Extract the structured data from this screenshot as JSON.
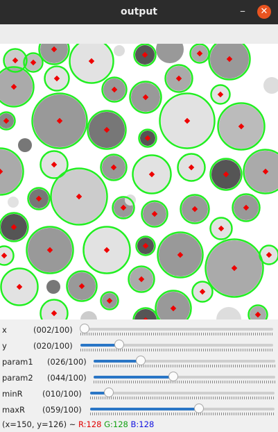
{
  "window": {
    "title": "output",
    "minimize_glyph": "–",
    "close_glyph": "✕"
  },
  "sliders": [
    {
      "label": "x",
      "value_text": "(002/100)",
      "value": 2
    },
    {
      "label": "y",
      "value_text": "(020/100)",
      "value": 20
    },
    {
      "label": "param1",
      "value_text": "(026/100)",
      "value": 26
    },
    {
      "label": "param2",
      "value_text": "(044/100)",
      "value": 44
    },
    {
      "label": "minR",
      "value_text": "(010/100)",
      "value": 10
    },
    {
      "label": "maxR",
      "value_text": "(059/100)",
      "value": 59
    }
  ],
  "status": {
    "coords": "(x=150, y=126) ~",
    "r": "R:128",
    "g": "G:128",
    "b": "B:128"
  },
  "colors": {
    "detection_circle": "#22ee22",
    "center_mark": "#ee0000",
    "close_button": "#e95420",
    "slider_fill": "#2a76c6"
  }
}
